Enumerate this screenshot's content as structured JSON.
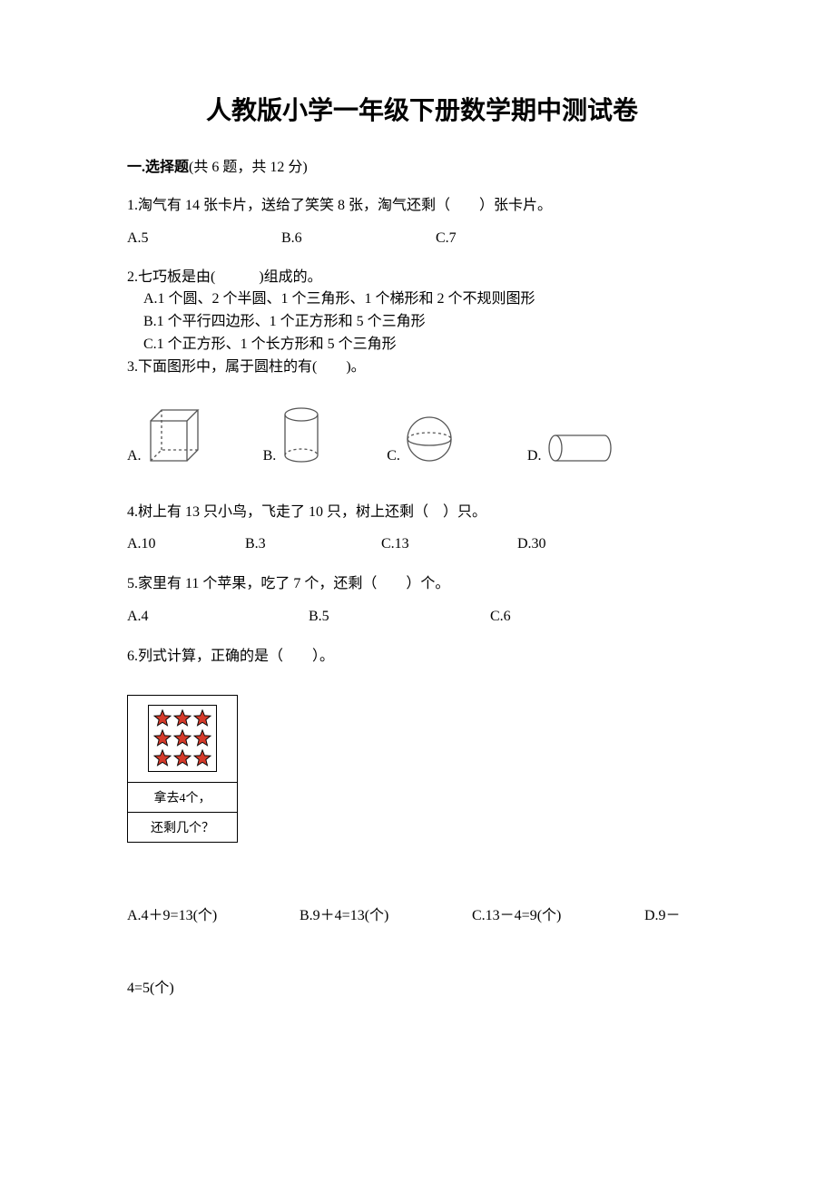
{
  "title": "人教版小学一年级下册数学期中测试卷",
  "section1": {
    "header_prefix": "一.选择题",
    "header_rest": "(共 6 题，共 12 分)"
  },
  "q1": {
    "text": "1.淘气有 14 张卡片，送给了笑笑 8 张，淘气还剩（  ）张卡片。",
    "a": "A.5",
    "b": "B.6",
    "c": "C.7"
  },
  "q2": {
    "text": "2.七巧板是由(   )组成的。",
    "a": "A.1 个圆、2 个半圆、1 个三角形、1 个梯形和 2 个不规则图形",
    "b": "B.1 个平行四边形、1 个正方形和 5 个三角形",
    "c": "C.1 个正方形、1 个长方形和 5 个三角形"
  },
  "q3": {
    "text": "3.下面图形中，属于圆柱的有(  )。",
    "a": "A.",
    "b": "B.",
    "c": "C.",
    "d": "D.",
    "stroke": "#555555"
  },
  "q4": {
    "text": "4.树上有 13 只小鸟，飞走了 10 只，树上还剩（ ）只。",
    "a": "A.10",
    "b": "B.3",
    "c": "C.13",
    "d": "D.30"
  },
  "q5": {
    "text": "5.家里有 11 个苹果，吃了 7 个，还剩（  ）个。",
    "a": "A.4",
    "b": "B.5",
    "c": "C.6"
  },
  "q6": {
    "text": "6.列式计算，正确的是（  ）。",
    "box_line1": "拿去4个，",
    "box_line2": "还剩几个？",
    "star_fill": "#d43a2a",
    "star_stroke": "#000000",
    "a": "A.4＋9=13(个)",
    "b": "B.9＋4=13(个)",
    "c": "C.13－4=9(个)",
    "d": "D.9－",
    "cont": "4=5(个)"
  }
}
